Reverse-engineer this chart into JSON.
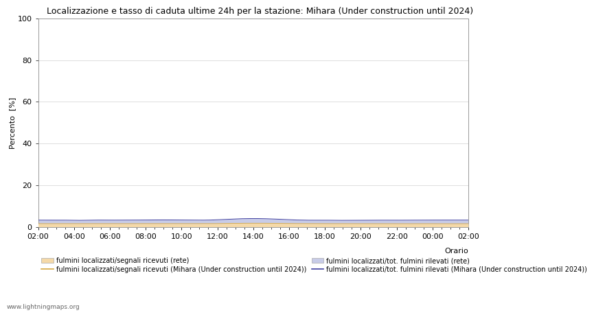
{
  "title": "Localizzazione e tasso di caduta ultime 24h per la stazione: Mihara (Under construction until 2024)",
  "ylabel": "Percento  [%]",
  "xlabel": "Orario",
  "watermark": "www.lightningmaps.org",
  "ylim": [
    0,
    100
  ],
  "yticks": [
    0,
    20,
    40,
    60,
    80,
    100
  ],
  "x_labels": [
    "02:00",
    "04:00",
    "06:00",
    "08:00",
    "10:00",
    "12:00",
    "14:00",
    "16:00",
    "18:00",
    "20:00",
    "22:00",
    "00:00",
    "02:00"
  ],
  "n_points": 480,
  "rete_fill_color": "#f5d9a8",
  "mihara_fill_color": "#c8cce8",
  "rete_line_color": "#d4a840",
  "mihara_line_color": "#4040a0",
  "legend_labels": [
    "fulmini localizzati/segnali ricevuti (rete)",
    "fulmini localizzati/segnali ricevuti (Mihara (Under construction until 2024))",
    "fulmini localizzati/tot. fulmini rilevati (rete)",
    "fulmini localizzati/tot. fulmini rilevati (Mihara (Under construction until 2024))"
  ],
  "title_fontsize": 9,
  "axis_fontsize": 8,
  "tick_fontsize": 8,
  "legend_fontsize": 7,
  "background_color": "#ffffff",
  "grid_color": "#d8d8d8"
}
